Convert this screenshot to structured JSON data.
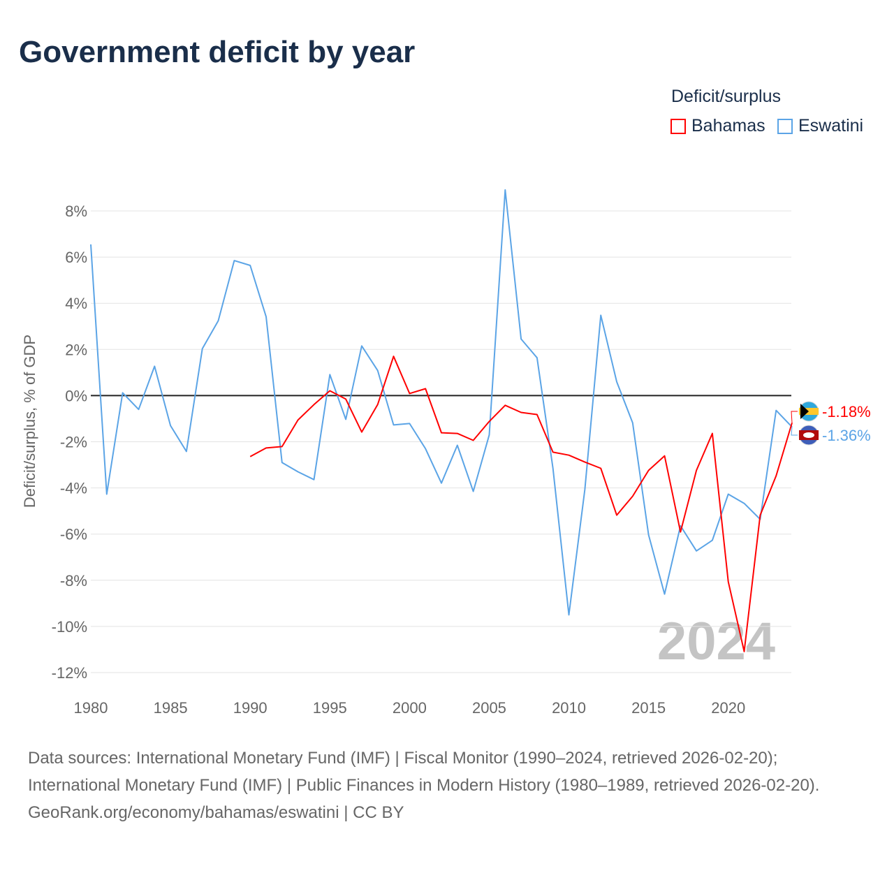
{
  "title": "Government deficit by year",
  "legend": {
    "title": "Deficit/surplus",
    "items": [
      {
        "label": "Bahamas",
        "color": "#ff0000"
      },
      {
        "label": "Eswatini",
        "color": "#5ba4e6"
      }
    ]
  },
  "watermark_year": "2024",
  "footer": {
    "sources": "Data sources: International Monetary Fund (IMF) | Fiscal Monitor (1990–2024, retrieved 2026-02-20); International Monetary Fund (IMF) | Public Finances in Modern History (1980–1989, retrieved 2026-02-20).",
    "attribution": "GeoRank.org/economy/bahamas/eswatini | CC BY"
  },
  "chart_data": {
    "type": "line",
    "title": "Government deficit by year",
    "xlabel": "",
    "ylabel": "Deficit/surplus, % of GDP",
    "xlim": [
      1980,
      2024
    ],
    "ylim": [
      -12,
      8
    ],
    "xticks": [
      1980,
      1985,
      1990,
      1995,
      2000,
      2005,
      2010,
      2015,
      2020
    ],
    "yticks": [
      8,
      6,
      4,
      2,
      0,
      -2,
      -4,
      -6,
      -8,
      -10,
      -12
    ],
    "ytick_labels": [
      "8%",
      "6%",
      "4%",
      "2%",
      "0%",
      "-2%",
      "-4%",
      "-6%",
      "-8%",
      "-10%",
      "-12%"
    ],
    "grid": true,
    "legend_position": "top-right",
    "series": [
      {
        "name": "Bahamas",
        "color": "#ff0000",
        "end_label": "-1.18%",
        "x_start": 1990,
        "values": [
          -2.64,
          -2.27,
          -2.21,
          -1.06,
          -0.39,
          0.21,
          -0.15,
          -1.58,
          -0.39,
          1.7,
          0.09,
          0.3,
          -1.61,
          -1.64,
          -1.94,
          -1.12,
          -0.42,
          -0.73,
          -0.82,
          -2.45,
          -2.58,
          -2.88,
          -3.15,
          -5.18,
          -4.36,
          -3.24,
          -2.61,
          -5.91,
          -3.24,
          -1.64,
          -8.06,
          -11.09,
          -5.18,
          -3.48,
          -1.18
        ]
      },
      {
        "name": "Eswatini",
        "color": "#5ba4e6",
        "end_label": "-1.36%",
        "x_start": 1980,
        "values": [
          6.55,
          -4.27,
          0.12,
          -0.6,
          1.27,
          -1.3,
          -2.42,
          2.03,
          3.24,
          5.85,
          5.64,
          3.42,
          -2.9,
          -3.3,
          -3.64,
          0.91,
          -1.03,
          2.15,
          1.09,
          -1.27,
          -1.21,
          -2.3,
          -3.79,
          -2.15,
          -4.15,
          -1.7,
          8.91,
          2.45,
          1.64,
          -3.15,
          -9.5,
          -4.06,
          3.48,
          0.6,
          -1.18,
          -6.03,
          -8.6,
          -5.64,
          -6.73,
          -6.27,
          -4.27,
          -4.67,
          -5.36,
          -0.64,
          -1.36
        ]
      }
    ]
  }
}
